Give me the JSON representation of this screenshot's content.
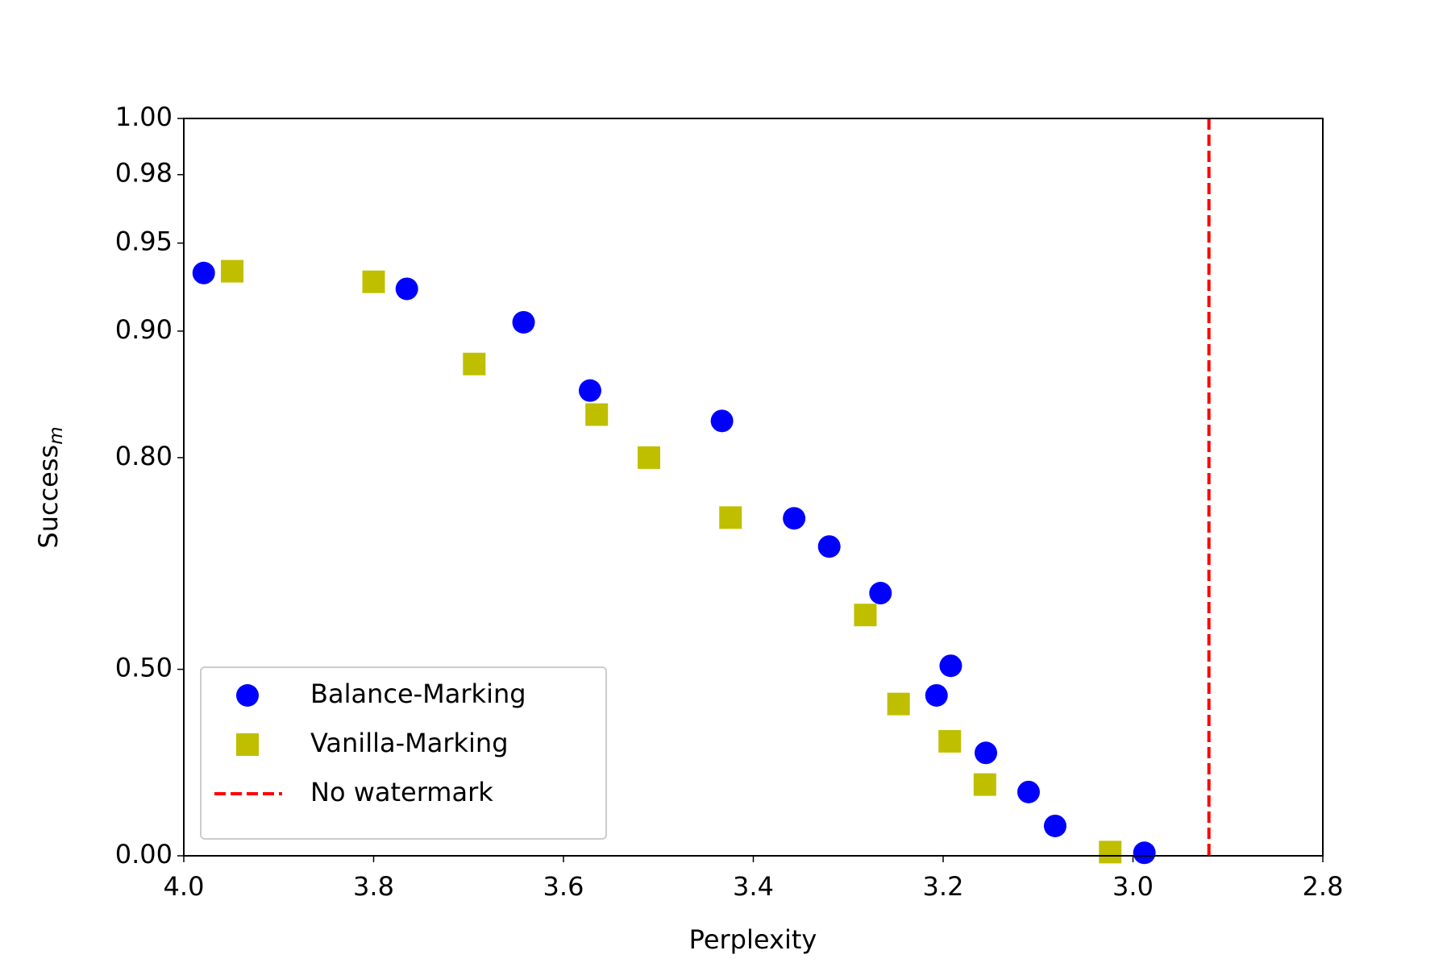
{
  "chart_data": {
    "type": "scatter",
    "xlabel": "Perplexity",
    "ylabel": "Success",
    "ylabel_subscript": "m",
    "xlim": [
      4.0,
      2.8
    ],
    "xticks": [
      {
        "value": 4.0,
        "label": "4.0"
      },
      3.8,
      3.6,
      3.4,
      3.2,
      {
        "value": 3.0,
        "label": "3.0"
      },
      2.8
    ],
    "ylim": [
      0,
      1
    ],
    "yscale": "custom",
    "yticks": [
      {
        "value": 0,
        "label": "0.00"
      },
      {
        "value": 0.5,
        "label": "0.50"
      },
      {
        "value": 0.8,
        "label": "0.80"
      },
      {
        "value": 0.9,
        "label": "0.90"
      },
      {
        "value": 0.95,
        "label": "0.95"
      },
      {
        "value": 0.98,
        "label": "0.98"
      },
      {
        "value": 1,
        "label": "1.00"
      }
    ],
    "legend": "lower left",
    "series": [
      {
        "name": "Balance-Marking",
        "color": "#0000ff",
        "marker": "circle",
        "x": [
          3.979,
          3.765,
          3.642,
          3.572,
          3.433,
          3.357,
          3.32,
          3.266,
          3.192,
          3.207,
          3.155,
          3.11,
          3.082,
          2.988
        ],
        "values": [
          0.933,
          0.924,
          0.905,
          0.853,
          0.829,
          0.714,
          0.674,
          0.608,
          0.505,
          0.43,
          0.276,
          0.171,
          0.08,
          0.008
        ]
      },
      {
        "name": "Vanilla-Marking",
        "color": "#bfbf00",
        "marker": "square",
        "x": [
          3.949,
          3.8,
          3.694,
          3.565,
          3.51,
          3.424,
          3.282,
          3.247,
          3.193,
          3.156,
          3.024
        ],
        "values": [
          0.934,
          0.928,
          0.874,
          0.834,
          0.8,
          0.715,
          0.577,
          0.407,
          0.307,
          0.191,
          0.01
        ]
      }
    ],
    "reference_lines": [
      {
        "name": "No watermark",
        "color": "#ff0000",
        "style": "dashed",
        "x": 2.92
      }
    ]
  }
}
